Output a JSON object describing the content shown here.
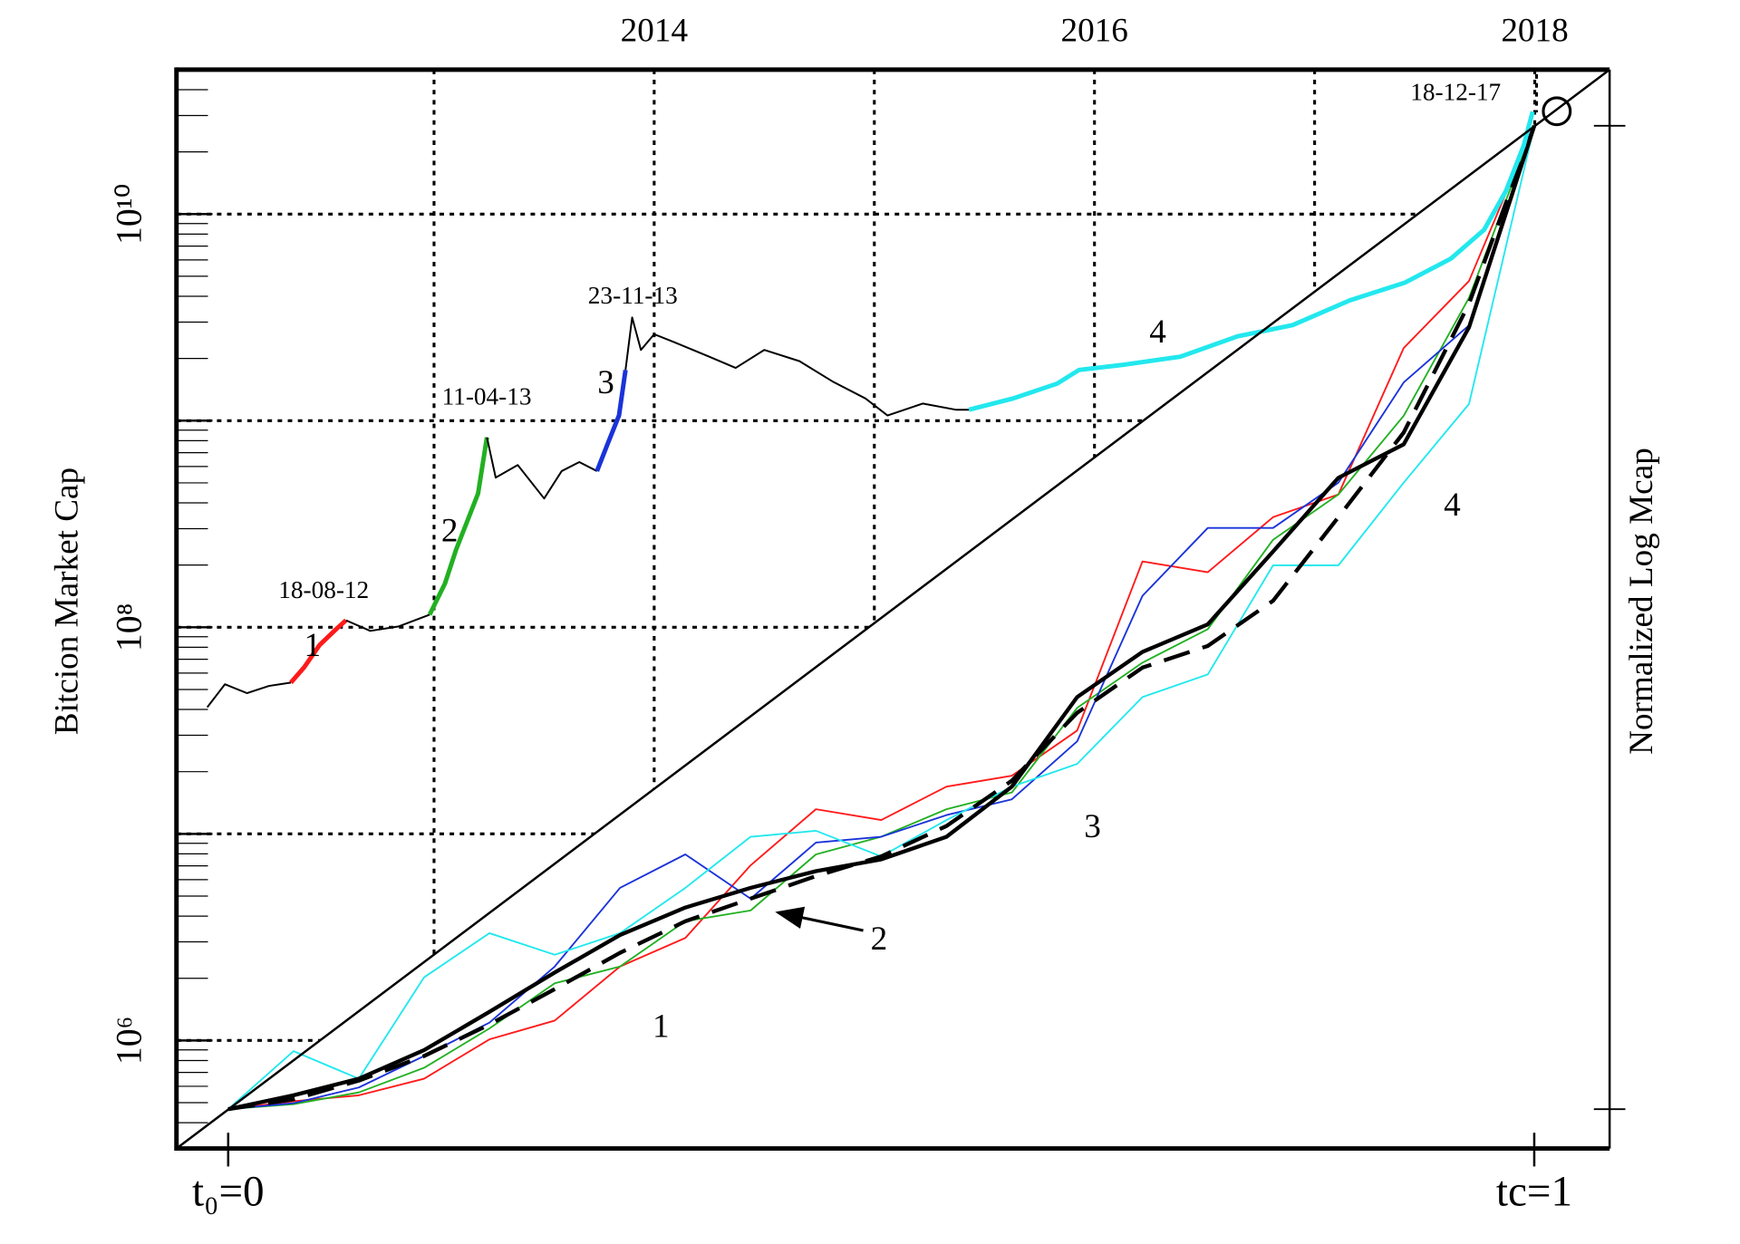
{
  "chart_data": [
    {
      "type": "line",
      "y_label": "Bitcion Market Cap",
      "xlim": [
        2011.83,
        2018.34
      ],
      "xticks": [
        2014,
        2016,
        2018
      ],
      "xgrid": [
        2013,
        2014,
        2015,
        2016,
        2017,
        2018
      ],
      "ylog": true,
      "ylim": [
        300000.0,
        50000000000.0
      ],
      "yticks": [
        {
          "value": 1000000.0,
          "label": "10⁶"
        },
        {
          "value": 100000000.0,
          "label": "10⁸"
        },
        {
          "value": 10000000000.0,
          "label": "10¹⁰"
        }
      ],
      "ygrid": [
        1000000.0,
        10000000.0,
        100000000.0,
        1000000000.0,
        10000000000.0
      ],
      "yminorticks": [
        400000.0,
        500000.0,
        600000.0,
        700000.0,
        800000.0,
        900000.0,
        2000000.0,
        3000000.0,
        4000000.0,
        5000000.0,
        6000000.0,
        7000000.0,
        8000000.0,
        9000000.0,
        20000000.0,
        30000000.0,
        40000000.0,
        50000000.0,
        60000000.0,
        70000000.0,
        80000000.0,
        90000000.0,
        200000000.0,
        300000000.0,
        400000000.0,
        500000000.0,
        600000000.0,
        700000000.0,
        800000000.0,
        900000000.0,
        2000000000.0,
        3000000000.0,
        4000000000.0,
        5000000000.0,
        6000000000.0,
        7000000000.0,
        8000000000.0,
        9000000000.0,
        20000000000.0,
        30000000000.0,
        40000000000.0,
        50000000000.0
      ],
      "series": [
        {
          "color": "#000000",
          "x": [
            2011.97,
            2012.05,
            2012.15,
            2012.25,
            2012.35
          ],
          "values": [
            41000000.0,
            53000000.0,
            48000000.0,
            52000000.0,
            54000000.0
          ]
        },
        {
          "color": "#ff1a1a",
          "x": [
            2012.35,
            2012.41,
            2012.48,
            2012.56,
            2012.6
          ],
          "values": [
            54000000.0,
            64000000.0,
            82000000.0,
            99000000.0,
            108000000.0
          ]
        },
        {
          "color": "#000000",
          "x": [
            2012.6,
            2012.71,
            2012.84,
            2012.98
          ],
          "values": [
            108000000.0,
            96000000.0,
            101000000.0,
            115000000.0
          ]
        },
        {
          "color": "#22b022",
          "x": [
            2012.98,
            2013.05,
            2013.1,
            2013.15,
            2013.2,
            2013.24
          ],
          "values": [
            115000000.0,
            163000000.0,
            237000000.0,
            324000000.0,
            444000000.0,
            830000000.0
          ]
        },
        {
          "color": "#000000",
          "x": [
            2013.24,
            2013.28,
            2013.38,
            2013.5,
            2013.58,
            2013.66,
            2013.74
          ],
          "values": [
            830000000.0,
            530000000.0,
            610000000.0,
            420000000.0,
            570000000.0,
            630000000.0,
            570000000.0
          ]
        },
        {
          "color": "#1a33d9",
          "x": [
            2013.74,
            2013.79,
            2013.84,
            2013.87
          ],
          "values": [
            570000000.0,
            780000000.0,
            1060000000.0,
            1760000000.0
          ]
        },
        {
          "color": "#000000",
          "x": [
            2013.87,
            2013.9,
            2013.94,
            2014.0,
            2014.09,
            2014.25,
            2014.37,
            2014.5,
            2014.66,
            2014.81,
            2014.96,
            2015.06,
            2015.22,
            2015.37,
            2015.43
          ],
          "values": [
            1760000000.0,
            3160000000.0,
            2200000000.0,
            2620000000.0,
            2400000000.0,
            2040000000.0,
            1800000000.0,
            2200000000.0,
            1940000000.0,
            1550000000.0,
            1280000000.0,
            1060000000.0,
            1210000000.0,
            1130000000.0,
            1130000000.0
          ]
        },
        {
          "color": "#22e8ee",
          "x": [
            2015.43,
            2015.63,
            2015.83,
            2015.93,
            2016.14,
            2016.39,
            2016.65,
            2016.9,
            2017.16,
            2017.41,
            2017.62,
            2017.77,
            2017.87,
            2017.95,
            2017.99
          ],
          "values": [
            1130000000.0,
            1280000000.0,
            1510000000.0,
            1760000000.0,
            1870000000.0,
            2040000000.0,
            2560000000.0,
            2900000000.0,
            3820000000.0,
            4660000000.0,
            6100000000.0,
            8400000000.0,
            13000000000.0,
            21500000000.0,
            31300000000.0
          ]
        }
      ],
      "annotations": [
        "18-08-12",
        "11-04-13",
        "23-11-13",
        "18-12-17",
        "1",
        "2",
        "3",
        "4"
      ]
    },
    {
      "type": "line",
      "y2_label": "Normalized Log Mcap",
      "xlim": [
        -0.0396,
        1.0577
      ],
      "xticks": [
        {
          "value": 0,
          "label": "t₀=0"
        },
        {
          "value": 1,
          "label": "tc=1"
        }
      ],
      "y2lim": [
        -0.04,
        1.057
      ],
      "y2ticks": [
        0,
        1
      ],
      "x": [
        0,
        0.05,
        0.1,
        0.15,
        0.2,
        0.25,
        0.3,
        0.35,
        0.4,
        0.45,
        0.5,
        0.55,
        0.6,
        0.65,
        0.7,
        0.75,
        0.8,
        0.85,
        0.9,
        0.95,
        1
      ],
      "series": [
        {
          "color": "#ff1a1a",
          "axis": "y2",
          "values": [
            0,
            0.008,
            0.014,
            0.031,
            0.071,
            0.09,
            0.145,
            0.174,
            0.248,
            0.305,
            0.294,
            0.328,
            0.339,
            0.385,
            0.557,
            0.546,
            0.602,
            0.625,
            0.774,
            0.842,
            1
          ]
        },
        {
          "color": "#22b022",
          "axis": "y2",
          "values": [
            0,
            0.005,
            0.017,
            0.042,
            0.082,
            0.128,
            0.145,
            0.191,
            0.202,
            0.259,
            0.277,
            0.305,
            0.322,
            0.408,
            0.454,
            0.488,
            0.579,
            0.625,
            0.705,
            0.825,
            1
          ]
        },
        {
          "color": "#1a33d9",
          "axis": "y2",
          "values": [
            0,
            0.006,
            0.022,
            0.054,
            0.088,
            0.145,
            0.225,
            0.259,
            0.214,
            0.271,
            0.277,
            0.299,
            0.315,
            0.374,
            0.522,
            0.591,
            0.591,
            0.637,
            0.739,
            0.797,
            1
          ]
        },
        {
          "color": "#22e8ee",
          "axis": "y2",
          "values": [
            0,
            0.059,
            0.031,
            0.134,
            0.179,
            0.157,
            0.179,
            0.225,
            0.277,
            0.283,
            0.257,
            0.294,
            0.328,
            0.351,
            0.419,
            0.442,
            0.553,
            0.553,
            0.637,
            0.717,
            1
          ]
        },
        {
          "color": "#000000",
          "axis": "y2",
          "style": "dashed",
          "values": [
            0,
            0.01,
            0.029,
            0.054,
            0.086,
            0.122,
            0.159,
            0.191,
            0.214,
            0.237,
            0.257,
            0.288,
            0.334,
            0.403,
            0.449,
            0.471,
            0.517,
            0.602,
            0.688,
            0.819,
            1
          ]
        },
        {
          "color": "#000000",
          "axis": "y2",
          "style": "solid",
          "values": [
            0,
            0.014,
            0.031,
            0.06,
            0.099,
            0.139,
            0.177,
            0.205,
            0.225,
            0.242,
            0.254,
            0.277,
            0.328,
            0.419,
            0.465,
            0.493,
            0.567,
            0.642,
            0.676,
            0.795,
            1
          ]
        }
      ],
      "annotations": [
        "1",
        "2",
        "3",
        "4"
      ]
    }
  ]
}
